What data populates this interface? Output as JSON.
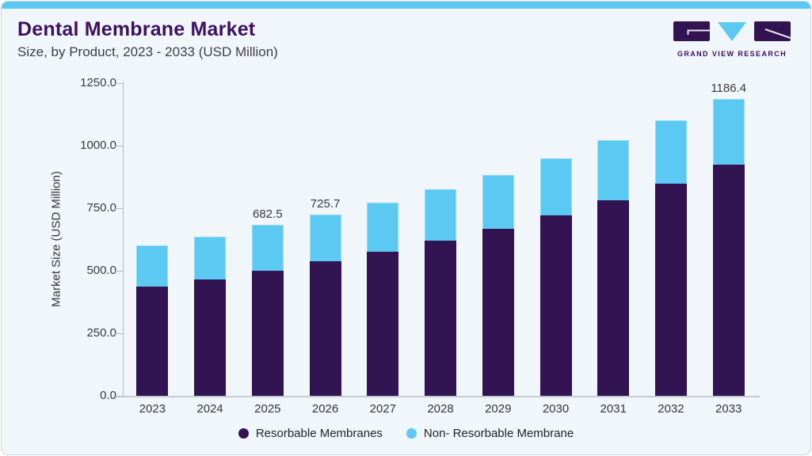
{
  "header": {
    "title": "Dental Membrane Market",
    "subtitle": "Size, by Product, 2023 - 2033 (USD Million)",
    "logo_text": "GRAND VIEW RESEARCH"
  },
  "colors": {
    "accent_blue": "#5AC8F1",
    "series_purple": "#331452",
    "series_blue": "#5BC9F2",
    "title_purple": "#3C1160",
    "card_background": "#F1F6FA",
    "axis_gray": "#B3BAC2",
    "label_text": "#3B3B3B"
  },
  "chart_data": {
    "type": "bar",
    "stacked": true,
    "title": "Dental Membrane Market",
    "subtitle": "Size, by Product, 2023 - 2033 (USD Million)",
    "xlabel": "",
    "ylabel": "Market Size (USD Million)",
    "ylim": [
      0,
      1250
    ],
    "ytick_labels": [
      "0.0",
      "250.0",
      "500.0",
      "750.0",
      "1000.0",
      "1250.0"
    ],
    "grid": false,
    "legend_position": "bottom",
    "categories": [
      "2023",
      "2024",
      "2025",
      "2026",
      "2027",
      "2028",
      "2029",
      "2030",
      "2031",
      "2032",
      "2033"
    ],
    "series": [
      {
        "name": "Resorbable Membranes",
        "color": "#331452",
        "values": [
          437.2,
          465.8,
          500.3,
          536.9,
          576.4,
          620.6,
          667.0,
          721.8,
          781.2,
          848.5,
          923.0
        ]
      },
      {
        "name": "Non- Resorbable Membrane",
        "color": "#5BC9F2",
        "values": [
          163.9,
          170.0,
          182.2,
          188.8,
          196.1,
          206.1,
          217.3,
          227.9,
          240.5,
          252.0,
          263.4
        ]
      }
    ],
    "totals": [
      601.1,
      635.8,
      682.5,
      725.7,
      772.5,
      826.7,
      884.3,
      949.7,
      1021.7,
      1100.5,
      1186.4
    ],
    "visible_bar_labels": {
      "2025": "682.5",
      "2026": "725.7",
      "2033": "1186.4"
    }
  }
}
